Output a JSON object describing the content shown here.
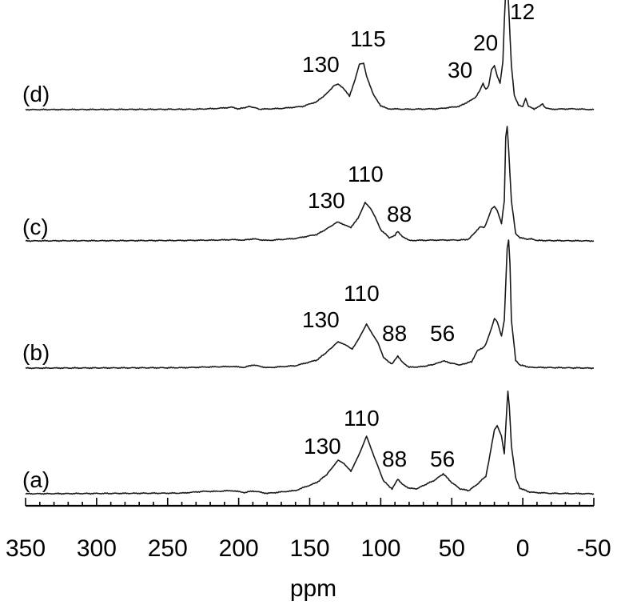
{
  "chart_data": {
    "type": "line",
    "xlabel": "ppm",
    "xlim": [
      350,
      -50
    ],
    "x_reversed": true,
    "xticks": [
      "350",
      "300",
      "250",
      "200",
      "150",
      "100",
      "50",
      "0",
      "-50"
    ],
    "grid": false,
    "legend": "none",
    "series": [
      {
        "name": "(a)",
        "points": [
          [
            350,
            0
          ],
          [
            240,
            0.8
          ],
          [
            225,
            3
          ],
          [
            215,
            3
          ],
          [
            205,
            4
          ],
          [
            196,
            1.5
          ],
          [
            190,
            3.5
          ],
          [
            180,
            0.5
          ],
          [
            160,
            4
          ],
          [
            145,
            14
          ],
          [
            138,
            24
          ],
          [
            130,
            42
          ],
          [
            126,
            38
          ],
          [
            121,
            28
          ],
          [
            115,
            50
          ],
          [
            110,
            72
          ],
          [
            105,
            48
          ],
          [
            98,
            16
          ],
          [
            92,
            6
          ],
          [
            88,
            18
          ],
          [
            85,
            12
          ],
          [
            80,
            7
          ],
          [
            75,
            6
          ],
          [
            68,
            12
          ],
          [
            62,
            17
          ],
          [
            56,
            25
          ],
          [
            50,
            14
          ],
          [
            44,
            6
          ],
          [
            38,
            4
          ],
          [
            32,
            12
          ],
          [
            26,
            22
          ],
          [
            24,
            40
          ],
          [
            20,
            80
          ],
          [
            18,
            85
          ],
          [
            15,
            72
          ],
          [
            13,
            50
          ],
          [
            11,
            115
          ],
          [
            10.5,
            128
          ],
          [
            9.5,
            110
          ],
          [
            8,
            60
          ],
          [
            5,
            20
          ],
          [
            2,
            7
          ],
          [
            -5,
            2
          ],
          [
            -20,
            0.5
          ],
          [
            -50,
            0
          ]
        ],
        "peak_labels": [
          "130",
          "110",
          "88",
          "56"
        ]
      },
      {
        "name": "(b)",
        "points": [
          [
            350,
            0
          ],
          [
            240,
            0.5
          ],
          [
            220,
            1.5
          ],
          [
            205,
            2
          ],
          [
            196,
            1
          ],
          [
            190,
            4
          ],
          [
            180,
            0.5
          ],
          [
            160,
            3
          ],
          [
            145,
            10
          ],
          [
            138,
            20
          ],
          [
            130,
            33
          ],
          [
            126,
            30
          ],
          [
            120,
            24
          ],
          [
            116,
            35
          ],
          [
            110,
            55
          ],
          [
            106,
            43
          ],
          [
            102,
            32
          ],
          [
            98,
            13
          ],
          [
            92,
            5
          ],
          [
            88,
            15
          ],
          [
            85,
            8
          ],
          [
            80,
            1
          ],
          [
            70,
            2
          ],
          [
            62,
            5
          ],
          [
            56,
            9
          ],
          [
            50,
            6
          ],
          [
            44,
            4
          ],
          [
            36,
            8
          ],
          [
            32,
            22
          ],
          [
            28,
            25
          ],
          [
            26,
            30
          ],
          [
            22,
            50
          ],
          [
            20,
            62
          ],
          [
            18,
            58
          ],
          [
            15,
            40
          ],
          [
            13,
            60
          ],
          [
            11,
            150
          ],
          [
            10,
            160
          ],
          [
            9,
            130
          ],
          [
            8,
            60
          ],
          [
            5,
            10
          ],
          [
            2,
            4
          ],
          [
            -5,
            1
          ],
          [
            -50,
            0
          ]
        ],
        "peak_labels": [
          "130",
          "110",
          "88",
          "56"
        ]
      },
      {
        "name": "(c)",
        "points": [
          [
            350,
            0
          ],
          [
            240,
            0.5
          ],
          [
            215,
            1
          ],
          [
            205,
            1.5
          ],
          [
            196,
            1
          ],
          [
            190,
            2.5
          ],
          [
            180,
            0.5
          ],
          [
            160,
            3
          ],
          [
            145,
            8
          ],
          [
            138,
            15
          ],
          [
            132,
            22
          ],
          [
            130,
            24
          ],
          [
            126,
            20
          ],
          [
            121,
            17
          ],
          [
            116,
            28
          ],
          [
            111,
            48
          ],
          [
            107,
            40
          ],
          [
            104,
            30
          ],
          [
            100,
            14
          ],
          [
            94,
            4
          ],
          [
            90,
            7
          ],
          [
            88,
            12
          ],
          [
            85,
            6
          ],
          [
            80,
            0.5
          ],
          [
            60,
            1
          ],
          [
            45,
            1
          ],
          [
            38,
            2
          ],
          [
            33,
            12
          ],
          [
            30,
            18
          ],
          [
            27,
            17
          ],
          [
            25,
            25
          ],
          [
            22,
            40
          ],
          [
            20,
            43
          ],
          [
            18,
            38
          ],
          [
            15,
            22
          ],
          [
            13,
            50
          ],
          [
            12,
            130
          ],
          [
            11,
            143
          ],
          [
            10,
            115
          ],
          [
            8,
            50
          ],
          [
            5,
            9
          ],
          [
            2,
            4
          ],
          [
            -3,
            2
          ],
          [
            -6,
            3
          ],
          [
            -10,
            0.5
          ],
          [
            -50,
            0
          ]
        ],
        "peak_labels": [
          "130",
          "110",
          "88"
        ]
      },
      {
        "name": "(d)",
        "points": [
          [
            350,
            0
          ],
          [
            230,
            0.5
          ],
          [
            215,
            1.5
          ],
          [
            205,
            3
          ],
          [
            200,
            1
          ],
          [
            192,
            4
          ],
          [
            185,
            0.5
          ],
          [
            170,
            1.5
          ],
          [
            155,
            4
          ],
          [
            145,
            10
          ],
          [
            138,
            20
          ],
          [
            133,
            30
          ],
          [
            130,
            32
          ],
          [
            127,
            28
          ],
          [
            122,
            17
          ],
          [
            118,
            38
          ],
          [
            115,
            57
          ],
          [
            112,
            58
          ],
          [
            110,
            42
          ],
          [
            105,
            18
          ],
          [
            100,
            5
          ],
          [
            95,
            1
          ],
          [
            80,
            0.5
          ],
          [
            60,
            1
          ],
          [
            45,
            4
          ],
          [
            38,
            10
          ],
          [
            33,
            16
          ],
          [
            30,
            25
          ],
          [
            28,
            33
          ],
          [
            26,
            25
          ],
          [
            24,
            30
          ],
          [
            22,
            50
          ],
          [
            20,
            55
          ],
          [
            18,
            42
          ],
          [
            16,
            33
          ],
          [
            14,
            60
          ],
          [
            13,
            110
          ],
          [
            12,
            150
          ],
          [
            11,
            158
          ],
          [
            10,
            130
          ],
          [
            8,
            55
          ],
          [
            6,
            18
          ],
          [
            3,
            6
          ],
          [
            0,
            4
          ],
          [
            -2,
            14
          ],
          [
            -4,
            4
          ],
          [
            -8,
            0.5
          ],
          [
            -12,
            5
          ],
          [
            -14,
            7
          ],
          [
            -16,
            2
          ],
          [
            -20,
            0.5
          ],
          [
            -35,
            1
          ],
          [
            -50,
            0
          ]
        ],
        "peak_labels": [
          "130",
          "115",
          "30",
          "20",
          "12"
        ]
      }
    ]
  }
}
